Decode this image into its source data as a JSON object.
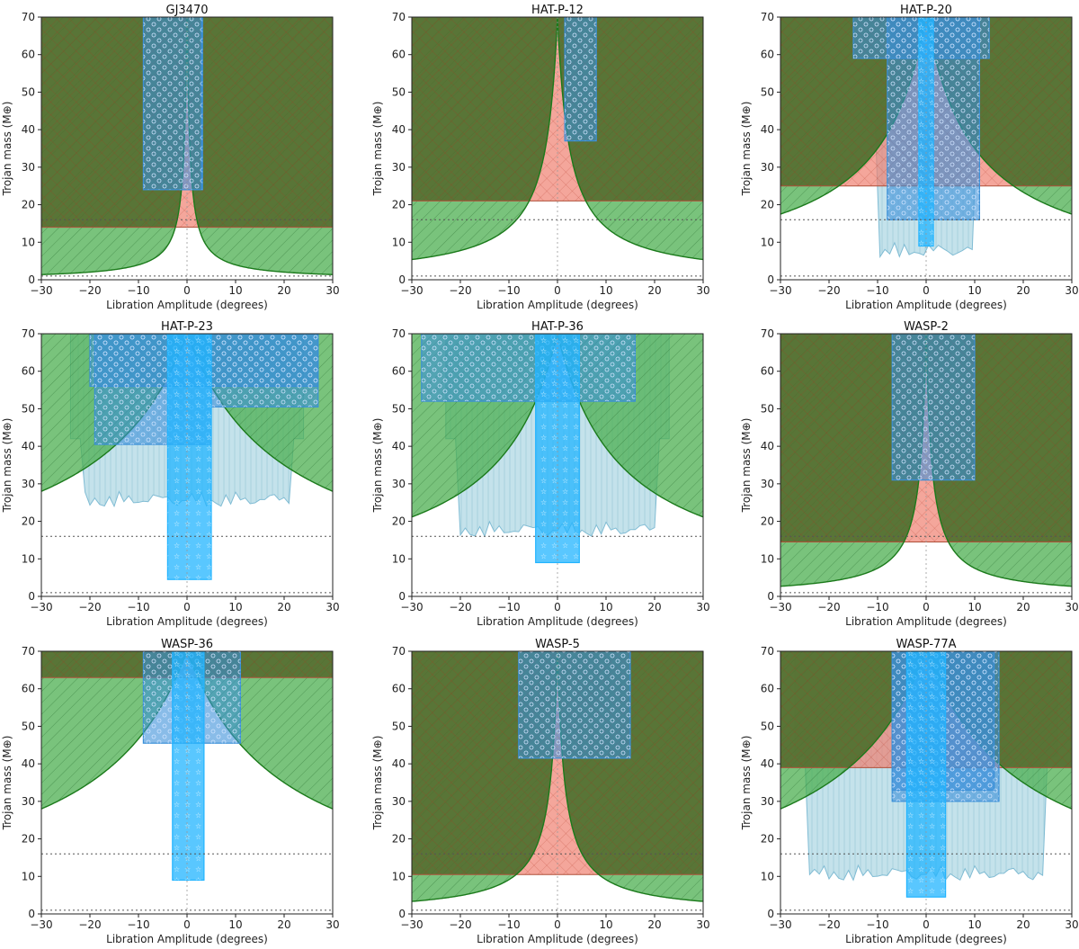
{
  "figure": {
    "xlabel": "Libration Amplitude (degrees)",
    "ylabel": "Trojan mass (M⊕)",
    "xlim": [
      -30,
      30
    ],
    "ylim": [
      0,
      70
    ],
    "xticks": [
      -30,
      -20,
      -10,
      0,
      10,
      20,
      30
    ],
    "yticks": [
      0,
      10,
      20,
      30,
      40,
      50,
      60,
      70
    ],
    "reference_lines_mass": [
      1,
      16
    ]
  },
  "colors": {
    "stability_fill": "#4caf50",
    "stability_edge": "#1b7a1b",
    "excluded_fill": "#556b2f",
    "red_region": "#f08070",
    "light_region": "#b0d8e4",
    "light_edge": "#80bcd4",
    "blue_box": "#3a8fd8",
    "cyan_box": "#22b4ff"
  },
  "chart_data": [
    {
      "type": "area",
      "title": "GJ3470",
      "stability_curve_half_width": 0.6,
      "horizontal_limit_mass": 14,
      "light_region": null,
      "boxes": [
        {
          "style": "blue",
          "x": [
            -9,
            3
          ],
          "mass": [
            24,
            70
          ]
        },
        {
          "style": "blue",
          "x": [
            3,
            3.2
          ],
          "mass": [
            24,
            70
          ]
        }
      ]
    },
    {
      "type": "area",
      "title": "HAT-P-12",
      "stability_curve_half_width": 2.5,
      "horizontal_limit_mass": 21,
      "light_region": null,
      "boxes": [
        {
          "style": "blue",
          "x": [
            1.5,
            8
          ],
          "mass": [
            37,
            70
          ]
        }
      ]
    },
    {
      "type": "area",
      "title": "HAT-P-20",
      "stability_curve_half_width": 10,
      "horizontal_limit_mass": 25,
      "light_region": {
        "x": [
          -12.5,
          12.5
        ],
        "floor_mass": 6
      },
      "boxes": [
        {
          "style": "blue",
          "x": [
            -8,
            11
          ],
          "mass": [
            16,
            70
          ]
        },
        {
          "style": "blue",
          "x": [
            -15,
            13
          ],
          "mass": [
            59,
            70
          ]
        },
        {
          "style": "cyan",
          "x": [
            -1.5,
            1.5
          ],
          "mass": [
            9,
            70
          ]
        }
      ]
    },
    {
      "type": "area",
      "title": "HAT-P-23",
      "stability_curve_half_width": 20,
      "horizontal_limit_mass": null,
      "light_region": {
        "x": [
          -24,
          24
        ],
        "floor_mass": 24
      },
      "boxes": [
        {
          "style": "blue",
          "x": [
            -20,
            27
          ],
          "mass": [
            56,
            70
          ]
        },
        {
          "style": "blue",
          "x": [
            -19,
            5
          ],
          "mass": [
            40.5,
            70
          ]
        },
        {
          "style": "blue",
          "x": [
            5,
            27
          ],
          "mass": [
            50.5,
            70
          ]
        },
        {
          "style": "cyan",
          "x": [
            -4,
            5
          ],
          "mass": [
            4.5,
            70
          ]
        }
      ]
    },
    {
      "type": "area",
      "title": "HAT-P-36",
      "stability_curve_half_width": 13,
      "horizontal_limit_mass": null,
      "light_region": {
        "x": [
          -23,
          23
        ],
        "floor_mass": 16
      },
      "boxes": [
        {
          "style": "blue",
          "x": [
            -28,
            16
          ],
          "mass": [
            52,
            70
          ]
        },
        {
          "style": "cyan",
          "x": [
            -4.5,
            4.5
          ],
          "mass": [
            9,
            70
          ]
        }
      ]
    },
    {
      "type": "area",
      "title": "WASP-2",
      "stability_curve_half_width": 1.2,
      "horizontal_limit_mass": 14.5,
      "light_region": null,
      "boxes": [
        {
          "style": "blue",
          "x": [
            -7,
            10
          ],
          "mass": [
            31,
            70
          ]
        }
      ]
    },
    {
      "type": "area",
      "title": "WASP-36",
      "stability_curve_half_width": 20,
      "horizontal_limit_mass": 63,
      "light_region": null,
      "boxes": [
        {
          "style": "blue",
          "x": [
            -9,
            11
          ],
          "mass": [
            45.5,
            70
          ]
        },
        {
          "style": "cyan",
          "x": [
            -3,
            3.5
          ],
          "mass": [
            9,
            70
          ]
        }
      ]
    },
    {
      "type": "area",
      "title": "WASP-5",
      "stability_curve_half_width": 1.5,
      "horizontal_limit_mass": 10.5,
      "light_region": null,
      "boxes": [
        {
          "style": "blue",
          "x": [
            -8,
            15
          ],
          "mass": [
            41.5,
            70
          ]
        }
      ]
    },
    {
      "type": "area",
      "title": "WASP-77A",
      "stability_curve_half_width": 20,
      "horizontal_limit_mass": 39,
      "light_region": {
        "x": [
          -27,
          27
        ],
        "floor_mass": 9
      },
      "boxes": [
        {
          "style": "blue",
          "x": [
            -7,
            15
          ],
          "mass": [
            30,
            70
          ]
        },
        {
          "style": "blue",
          "x": [
            -7,
            14
          ],
          "mass": [
            33,
            70
          ]
        },
        {
          "style": "cyan",
          "x": [
            -4,
            4
          ],
          "mass": [
            4.5,
            70
          ]
        }
      ]
    }
  ]
}
